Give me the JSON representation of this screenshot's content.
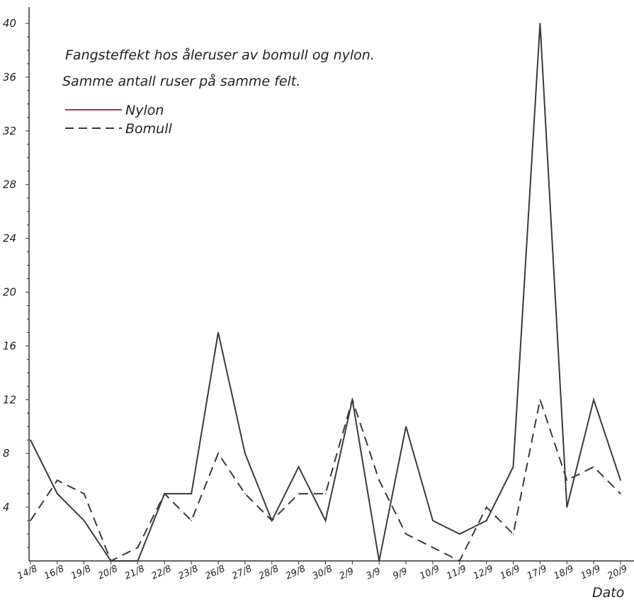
{
  "chart_data": {
    "type": "line",
    "title_lines": [
      "Fangsteffekt hos åleruser av bomull og nylon.",
      "Samme antall ruser på samme felt."
    ],
    "xlabel": "Dato",
    "ylabel": "",
    "ylim": [
      0,
      41
    ],
    "yticks": [
      4,
      8,
      12,
      16,
      20,
      24,
      28,
      32,
      36,
      40
    ],
    "categories": [
      "14/8",
      "16/8",
      "19/8",
      "20/8",
      "21/8",
      "22/8",
      "23/8",
      "26/8",
      "27/8",
      "28/8",
      "29/8",
      "30/8",
      "2/9",
      "3/9",
      "9/9",
      "10/9",
      "11/9",
      "12/9",
      "16/9",
      "17/9",
      "18/9",
      "19/9",
      "20/9"
    ],
    "series": [
      {
        "name": "Nylon",
        "style": "solid",
        "color": "#3a3a3a",
        "values": [
          9,
          5,
          3,
          0,
          0,
          5,
          5,
          17,
          8,
          3,
          7,
          3,
          12,
          0,
          10,
          3,
          2,
          3,
          7,
          40,
          4,
          12,
          6
        ]
      },
      {
        "name": "Bomull",
        "style": "dashed",
        "color": "#3a3a3a",
        "values": [
          3,
          6,
          5,
          0,
          1,
          5,
          3,
          8,
          5,
          3,
          5,
          5,
          12,
          6,
          2,
          1,
          0,
          4,
          2,
          12,
          6,
          7,
          5
        ]
      }
    ],
    "grid": false,
    "legend_position": "top-left",
    "legend_swatch_colors": {
      "Nylon": "#a0306a",
      "Bomull": "#3a3a3a"
    }
  }
}
